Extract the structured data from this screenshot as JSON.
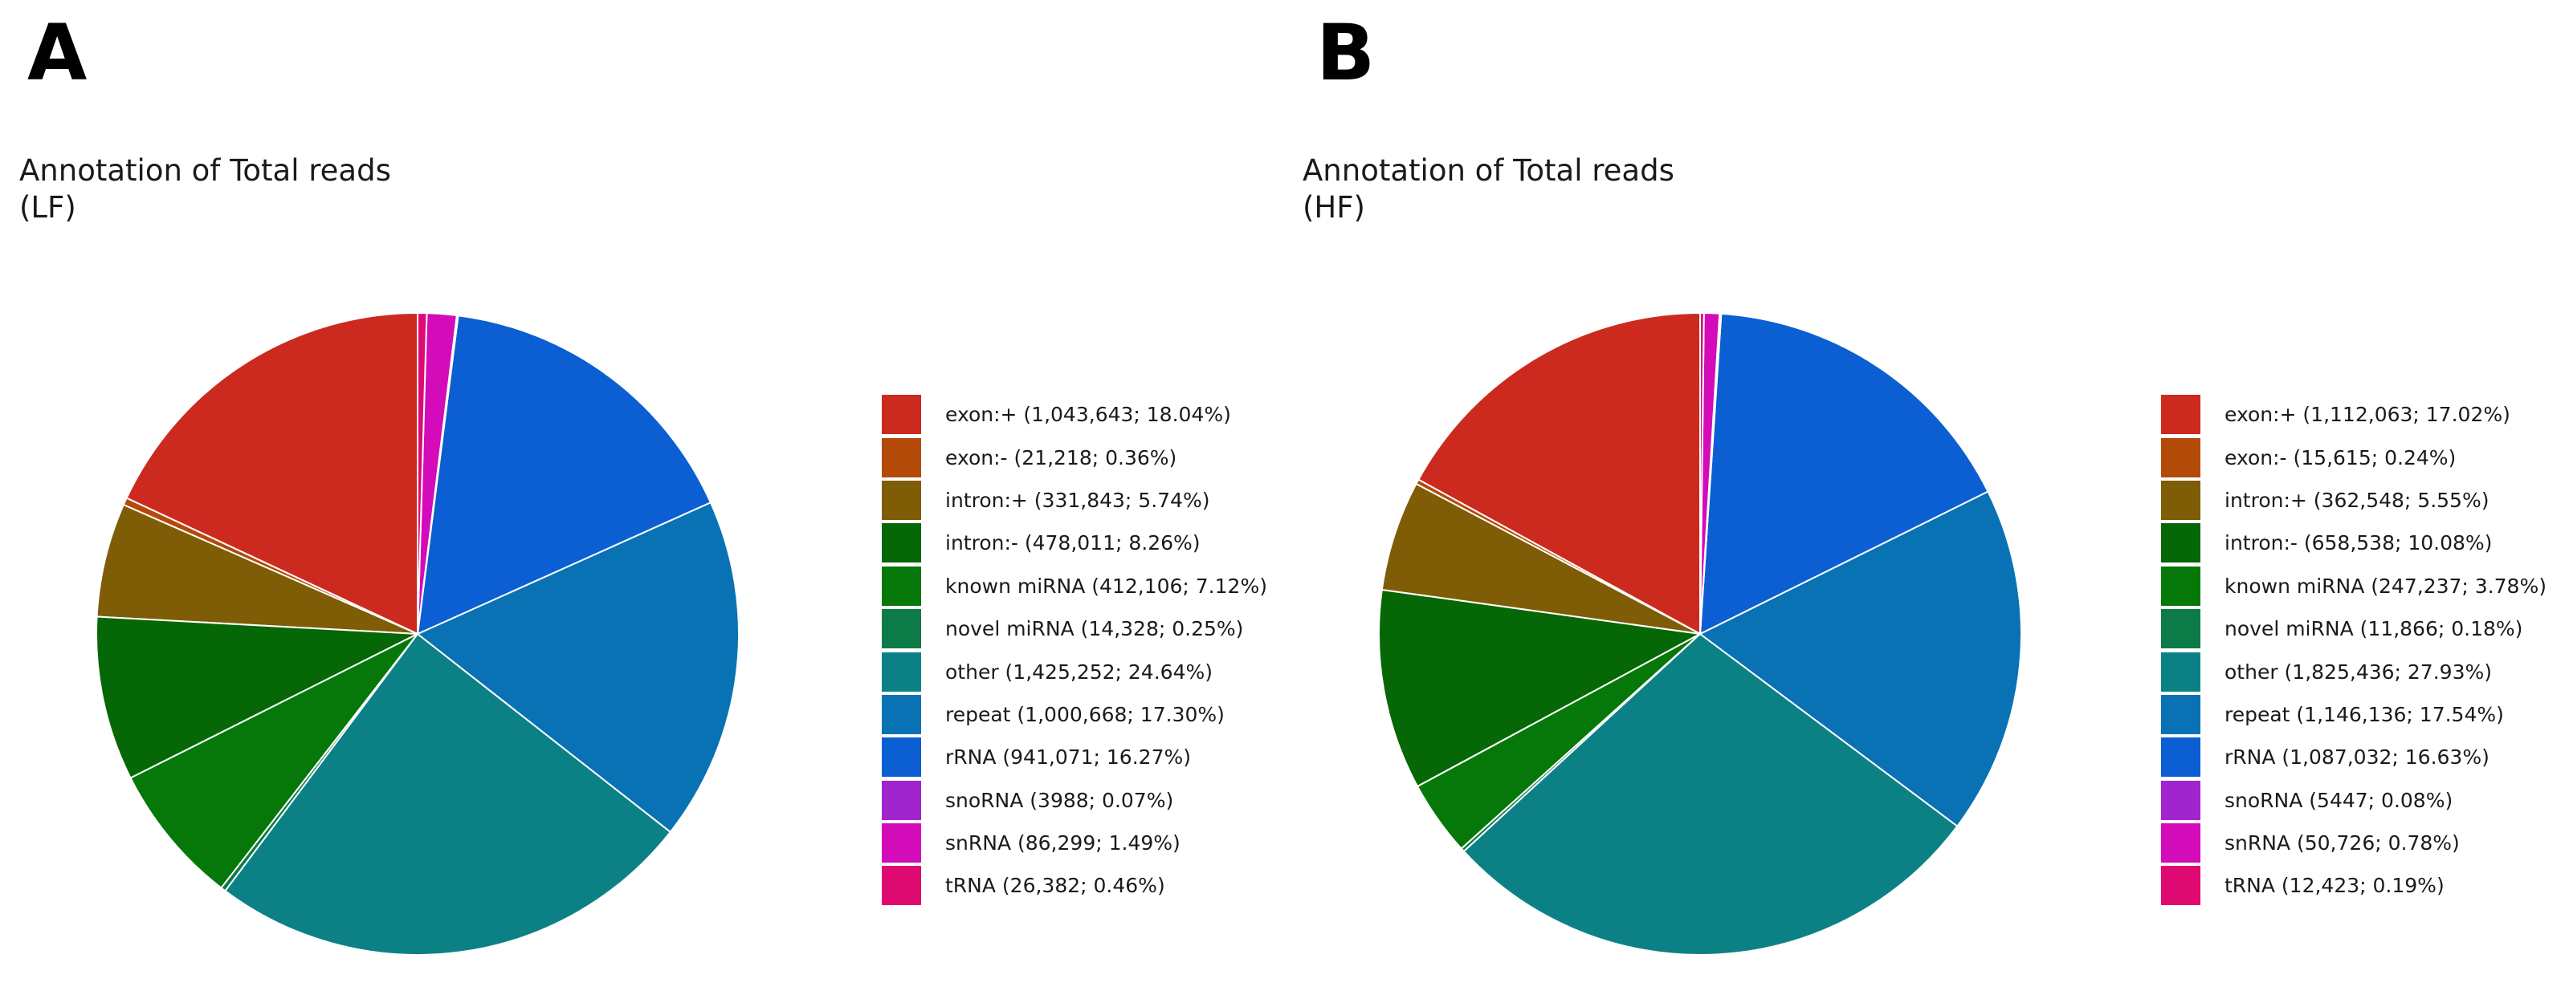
{
  "chart_data": [
    {
      "type": "pie",
      "panel_label": "A",
      "title_line1": "Annotation of Total reads",
      "title_line2": "(LF)",
      "slices": [
        {
          "label": "exon:+ (1,043,643; 18.04%)",
          "category": "exon:+",
          "value": 1043643,
          "percent": 18.04,
          "color": "#cc2a1e"
        },
        {
          "label": "exon:- (21,218; 0.36%)",
          "category": "exon:-",
          "value": 21218,
          "percent": 0.36,
          "color": "#b34a08"
        },
        {
          "label": "intron:+ (331,843; 5.74%)",
          "category": "intron:+",
          "value": 331843,
          "percent": 5.74,
          "color": "#7f5c06"
        },
        {
          "label": "intron:- (478,011; 8.26%)",
          "category": "intron:-",
          "value": 478011,
          "percent": 8.26,
          "color": "#056705"
        },
        {
          "label": "known miRNA (412,106; 7.12%)",
          "category": "known miRNA",
          "value": 412106,
          "percent": 7.12,
          "color": "#06780a"
        },
        {
          "label": "novel miRNA (14,328; 0.25%)",
          "category": "novel miRNA",
          "value": 14328,
          "percent": 0.25,
          "color": "#0d7b48"
        },
        {
          "label": "other (1,425,252; 24.64%)",
          "category": "other",
          "value": 1425252,
          "percent": 24.64,
          "color": "#0c8185"
        },
        {
          "label": "repeat (1,000,668; 17.30%)",
          "category": "repeat",
          "value": 1000668,
          "percent": 17.3,
          "color": "#0872b5"
        },
        {
          "label": "rRNA (941,071; 16.27%)",
          "category": "rRNA",
          "value": 941071,
          "percent": 16.27,
          "color": "#0b5fd3"
        },
        {
          "label": "snoRNA (3988; 0.07%)",
          "category": "snoRNA",
          "value": 3988,
          "percent": 0.07,
          "color": "#a025cc"
        },
        {
          "label": "snRNA (86,299; 1.49%)",
          "category": "snRNA",
          "value": 86299,
          "percent": 1.49,
          "color": "#d30bb9"
        },
        {
          "label": "tRNA (26,382; 0.46%)",
          "category": "tRNA",
          "value": 26382,
          "percent": 0.46,
          "color": "#de0a72"
        }
      ]
    },
    {
      "type": "pie",
      "panel_label": "B",
      "title_line1": "Annotation of Total reads",
      "title_line2": "(HF)",
      "slices": [
        {
          "label": "exon:+ (1,112,063; 17.02%)",
          "category": "exon:+",
          "value": 1112063,
          "percent": 17.02,
          "color": "#cc2a1e"
        },
        {
          "label": "exon:- (15,615; 0.24%)",
          "category": "exon:-",
          "value": 15615,
          "percent": 0.24,
          "color": "#b34a08"
        },
        {
          "label": "intron:+ (362,548; 5.55%)",
          "category": "intron:+",
          "value": 362548,
          "percent": 5.55,
          "color": "#7f5c06"
        },
        {
          "label": "intron:- (658,538; 10.08%)",
          "category": "intron:-",
          "value": 658538,
          "percent": 10.08,
          "color": "#056705"
        },
        {
          "label": "known miRNA (247,237; 3.78%)",
          "category": "known miRNA",
          "value": 247237,
          "percent": 3.78,
          "color": "#06780a"
        },
        {
          "label": "novel miRNA (11,866; 0.18%)",
          "category": "novel miRNA",
          "value": 11866,
          "percent": 0.18,
          "color": "#0d7b48"
        },
        {
          "label": "other (1,825,436; 27.93%)",
          "category": "other",
          "value": 1825436,
          "percent": 27.93,
          "color": "#0c8185"
        },
        {
          "label": "repeat (1,146,136; 17.54%)",
          "category": "repeat",
          "value": 1146136,
          "percent": 17.54,
          "color": "#0872b5"
        },
        {
          "label": "rRNA (1,087,032; 16.63%)",
          "category": "rRNA",
          "value": 1087032,
          "percent": 16.63,
          "color": "#0b5fd3"
        },
        {
          "label": "snoRNA (5447; 0.08%)",
          "category": "snoRNA",
          "value": 5447,
          "percent": 0.08,
          "color": "#a025cc"
        },
        {
          "label": "snRNA (50,726; 0.78%)",
          "category": "snRNA",
          "value": 50726,
          "percent": 0.78,
          "color": "#d30bb9"
        },
        {
          "label": "tRNA (12,423; 0.19%)",
          "category": "tRNA",
          "value": 12423,
          "percent": 0.19,
          "color": "#de0a72"
        }
      ]
    }
  ]
}
